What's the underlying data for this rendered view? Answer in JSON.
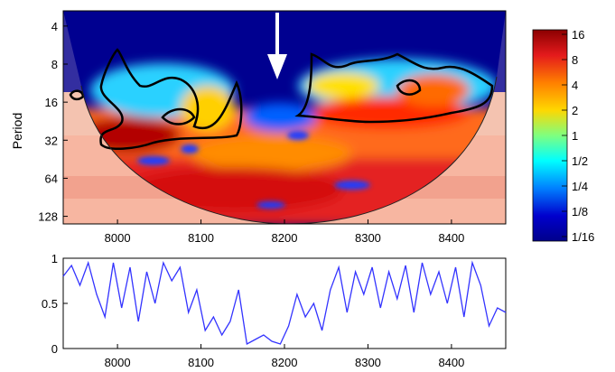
{
  "chart_data": [
    {
      "type": "heatmap",
      "title": "",
      "xlabel": "",
      "ylabel": "Period",
      "xlim": [
        7935,
        8465
      ],
      "ylim_log2": [
        1.6,
        7.2
      ],
      "x_ticks": [
        "8000",
        "8100",
        "8200",
        "8300",
        "8400"
      ],
      "x_tick_values": [
        8000,
        8100,
        8200,
        8300,
        8400
      ],
      "y_ticks": [
        "4",
        "8",
        "16",
        "32",
        "64",
        "128"
      ],
      "y_tick_values": [
        4,
        8,
        16,
        32,
        64,
        128
      ],
      "colorbar": {
        "labels": [
          "16",
          "8",
          "4",
          "2",
          "1",
          "1/2",
          "1/4",
          "1/8",
          "1/16"
        ],
        "range": [
          0.0625,
          16
        ],
        "colors": [
          "#8b0000",
          "#e41a1c",
          "#ff7f00",
          "#ffd700",
          "#7fff7f",
          "#00ffff",
          "#0080ff",
          "#0000cd",
          "#00008b"
        ]
      },
      "annotation": "arrow at x = 8180 pointing down",
      "arrow_x": 8180,
      "cone_of_influence": true,
      "significance_contours": true
    },
    {
      "type": "line",
      "title": "",
      "xlabel": "",
      "ylabel": "",
      "xlim": [
        7935,
        8465
      ],
      "ylim": [
        0,
        1
      ],
      "x_ticks": [
        "8000",
        "8100",
        "8200",
        "8300",
        "8400"
      ],
      "x_tick_values": [
        8000,
        8100,
        8200,
        8300,
        8400
      ],
      "y_ticks": [
        "0",
        "0.5",
        "1"
      ],
      "y_tick_values": [
        0,
        0.5,
        1
      ],
      "line_color": "#3333ff",
      "series": [
        {
          "x": [
            7935,
            7945,
            7955,
            7965,
            7975,
            7985,
            7995,
            8005,
            8015,
            8025,
            8035,
            8045,
            8055,
            8065,
            8075,
            8085,
            8095,
            8105,
            8115,
            8125,
            8135,
            8145,
            8155,
            8165,
            8175,
            8185,
            8195,
            8205,
            8215,
            8225,
            8235,
            8245,
            8255,
            8265,
            8275,
            8285,
            8295,
            8305,
            8315,
            8325,
            8335,
            8345,
            8355,
            8365,
            8375,
            8385,
            8395,
            8405,
            8415,
            8425,
            8435,
            8445,
            8455,
            8465
          ],
          "y": [
            0.8,
            0.92,
            0.7,
            0.95,
            0.6,
            0.35,
            0.95,
            0.45,
            0.9,
            0.3,
            0.85,
            0.5,
            0.95,
            0.75,
            0.9,
            0.4,
            0.65,
            0.2,
            0.35,
            0.15,
            0.3,
            0.65,
            0.05,
            0.1,
            0.15,
            0.08,
            0.05,
            0.25,
            0.6,
            0.35,
            0.5,
            0.2,
            0.65,
            0.9,
            0.4,
            0.85,
            0.6,
            0.9,
            0.45,
            0.85,
            0.55,
            0.92,
            0.4,
            0.95,
            0.6,
            0.85,
            0.5,
            0.9,
            0.35,
            0.95,
            0.7,
            0.25,
            0.45,
            0.4
          ]
        }
      ]
    }
  ]
}
